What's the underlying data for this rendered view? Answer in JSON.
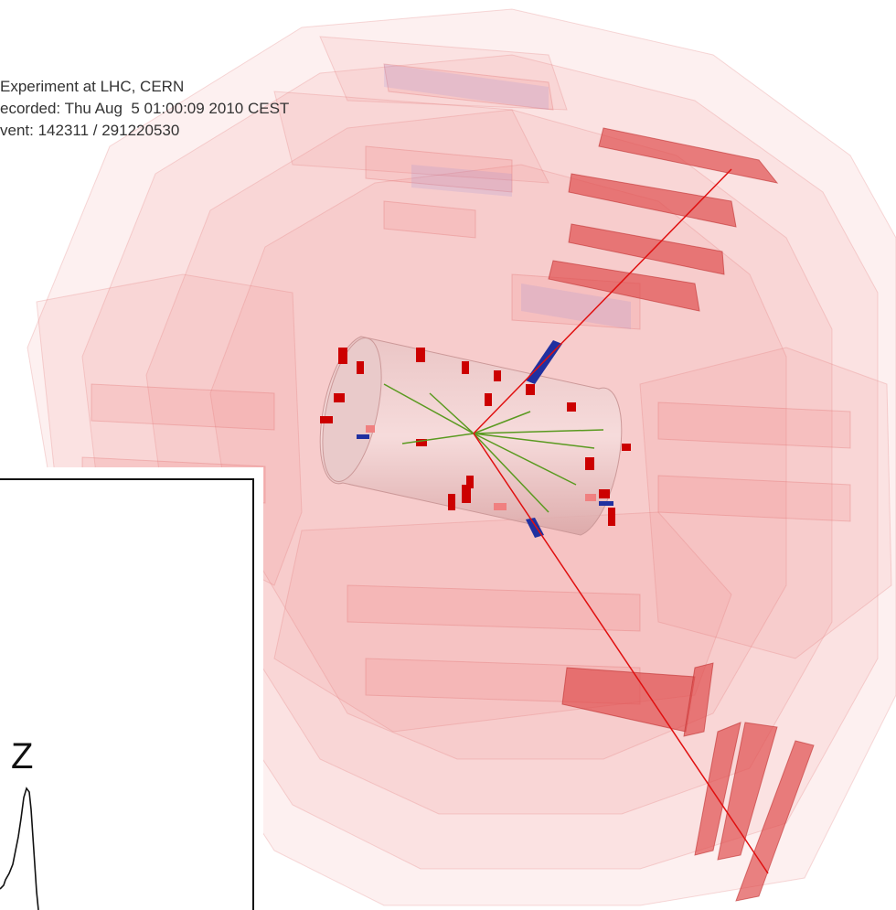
{
  "header": {
    "lines": [
      "Experiment at LHC, CERN",
      "ecorded: Thu Aug  5 01:00:09 2010 CEST",
      "vent: 142311 / 291220530"
    ]
  },
  "inset": {
    "label": "Z"
  }
}
